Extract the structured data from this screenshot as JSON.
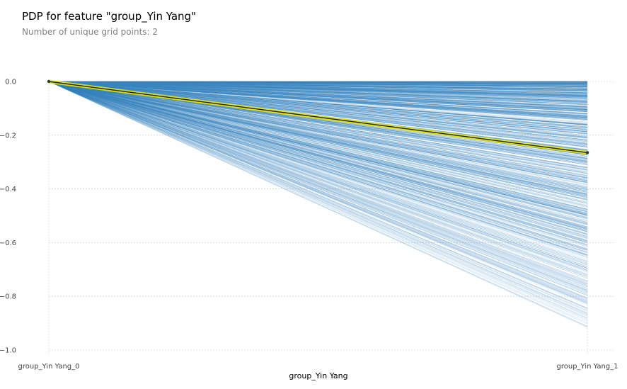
{
  "chart_data": {
    "type": "line",
    "title": "PDP for feature \"group_Yin Yang\"",
    "subtitle": "Number of unique grid points: 2",
    "xlabel": "group_Yin Yang",
    "ylabel": "",
    "categories": [
      "group_Yin Yang_0",
      "group_Yin Yang_1"
    ],
    "ylim": [
      -1.0,
      0.0
    ],
    "yticks": [
      0.0,
      -0.2,
      -0.4,
      -0.6,
      -0.8,
      -1.0
    ],
    "ytick_labels": [
      "0.0",
      "−0.2",
      "−0.4",
      "−0.6",
      "−0.8",
      "−1.0"
    ],
    "grid": true,
    "pdp_line": {
      "values": [
        0.0,
        -0.265
      ]
    },
    "ice_lines": {
      "start_value": 0.0,
      "end_min": -0.92,
      "end_max": 0.0
    },
    "colors": {
      "ice": "#3a86c0",
      "pdp_glow": "#e8e800",
      "pdp_line": "#1a1a1a",
      "pdp_marker": "#1e3f2e",
      "grid": "#cccccc"
    }
  }
}
